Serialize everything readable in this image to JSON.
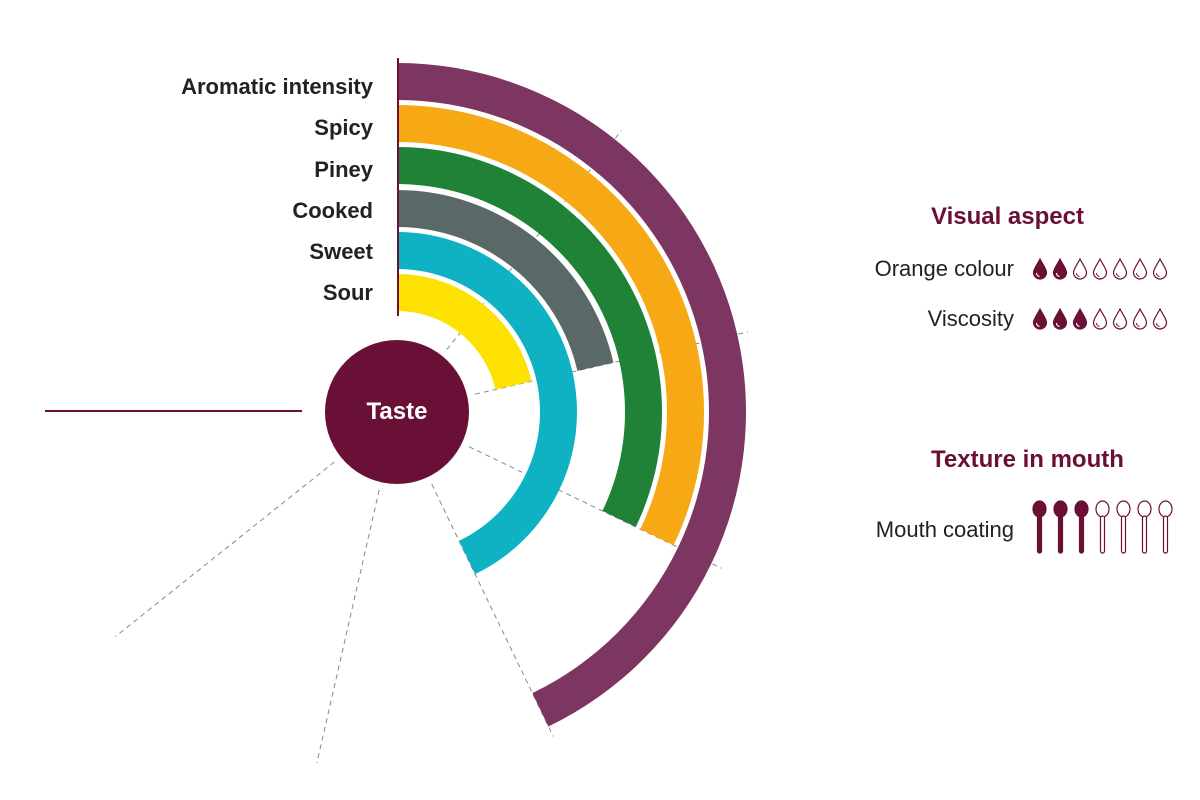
{
  "center_label": "Taste",
  "colors": {
    "brand": "#6a0f35",
    "aromatic": "#7d3562",
    "spicy": "#f6a915",
    "piney": "#1f8236",
    "cooked": "#5a6868",
    "sweet": "#0eb2c2",
    "sour": "#fde100",
    "grid": "#888888"
  },
  "taste": {
    "categories": [
      {
        "label": "Aromatic intensity",
        "value": 4,
        "color_key": "aromatic"
      },
      {
        "label": "Spicy",
        "value": 3,
        "color_key": "spicy"
      },
      {
        "label": "Piney",
        "value": 3,
        "color_key": "piney"
      },
      {
        "label": "Cooked",
        "value": 2,
        "color_key": "cooked"
      },
      {
        "label": "Sweet",
        "value": 4,
        "color_key": "sweet"
      },
      {
        "label": "Sour",
        "value": 2,
        "color_key": "sour"
      }
    ],
    "scale_max": 7
  },
  "visual_aspect": {
    "title": "Visual aspect",
    "rows": [
      {
        "label": "Orange colour",
        "value": 2,
        "max": 7,
        "icon": "drop-icon"
      },
      {
        "label": "Viscosity",
        "value": 3,
        "max": 7,
        "icon": "drop-icon"
      }
    ]
  },
  "texture": {
    "title": "Texture in mouth",
    "rows": [
      {
        "label": "Mouth coating",
        "value": 3,
        "max": 7,
        "icon": "spoon-icon"
      }
    ]
  },
  "chart_data": {
    "type": "radial-bar",
    "title": "Taste",
    "categories": [
      "Aromatic intensity",
      "Spicy",
      "Piney",
      "Cooked",
      "Sweet",
      "Sour"
    ],
    "values": [
      4,
      3,
      3,
      2,
      4,
      2
    ],
    "scale": {
      "min": 0,
      "max": 7,
      "sweep_degrees": 270
    },
    "grid": "dashed radial lines at each step",
    "extra_ratings": [
      {
        "group": "Visual aspect",
        "label": "Orange colour",
        "value": 2,
        "max": 7
      },
      {
        "group": "Visual aspect",
        "label": "Viscosity",
        "value": 3,
        "max": 7
      },
      {
        "group": "Texture in mouth",
        "label": "Mouth coating",
        "value": 3,
        "max": 7
      }
    ]
  }
}
